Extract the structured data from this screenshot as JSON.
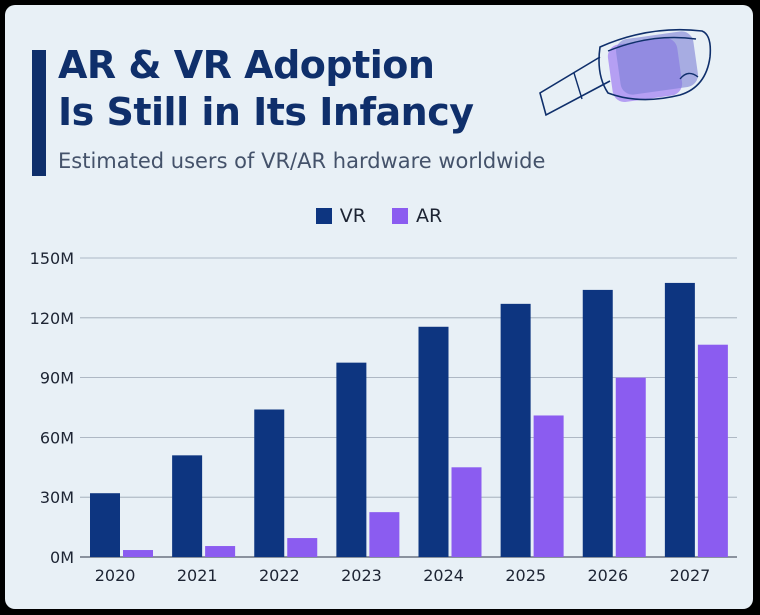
{
  "title_line1": "AR & VR Adoption",
  "title_line2": "Is Still in Its Infancy",
  "subtitle": "Estimated users of VR/AR hardware worldwide",
  "colors": {
    "vr": "#0d3580",
    "ar": "#8b5cf0",
    "title": "#0f2f6b",
    "background": "#e8f0f6"
  },
  "icon": "vr-headset-icon",
  "chart_data": {
    "type": "bar",
    "title": "Estimated users of VR/AR hardware worldwide",
    "categories": [
      "2020",
      "2021",
      "2022",
      "2023",
      "2024",
      "2025",
      "2026",
      "2027"
    ],
    "series": [
      {
        "name": "VR",
        "values": [
          32,
          51,
          74,
          97.5,
          115.5,
          127,
          134,
          137.5
        ]
      },
      {
        "name": "AR",
        "values": [
          3.5,
          5.5,
          9.5,
          22.5,
          45,
          71,
          90,
          106.5
        ]
      }
    ],
    "ylim": [
      0,
      150
    ],
    "yticks": [
      0,
      30,
      60,
      90,
      120,
      150
    ],
    "ytick_labels": [
      "0M",
      "30M",
      "60M",
      "90M",
      "120M",
      "150M"
    ],
    "xlabel": "",
    "ylabel": "",
    "legend": "top-center",
    "grid": true
  }
}
